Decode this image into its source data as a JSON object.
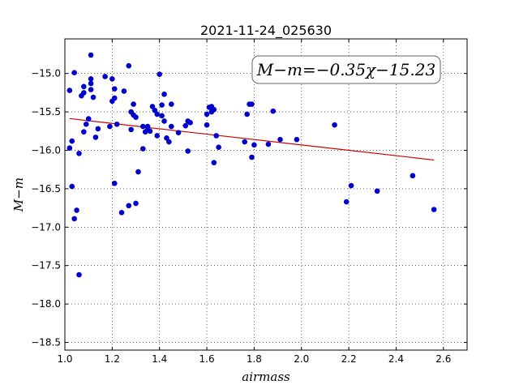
{
  "chart_data": {
    "type": "scatter",
    "title": "2021-11-24_025630",
    "xlabel": "airmass",
    "ylabel": "M−m",
    "xlim": [
      1.0,
      2.7
    ],
    "ylim": [
      -18.6,
      -14.55
    ],
    "y_inverted": true,
    "grid": true,
    "grid_style": "dotted",
    "xticks": [
      "1.0",
      "1.2",
      "1.4",
      "1.6",
      "1.8",
      "2.0",
      "2.2",
      "2.4",
      "2.6"
    ],
    "xtick_values": [
      1.0,
      1.2,
      1.4,
      1.6,
      1.8,
      2.0,
      2.2,
      2.4,
      2.6
    ],
    "yticks": [
      "−15.0",
      "−15.5",
      "−16.0",
      "−16.5",
      "−17.0",
      "−17.5",
      "−18.0",
      "−18.5"
    ],
    "ytick_values": [
      -15.0,
      -15.5,
      -16.0,
      -16.5,
      -17.0,
      -17.5,
      -18.0,
      -18.5
    ],
    "annotation": "M−m=−0.35χ−15.23",
    "fit_line": {
      "slope": -0.35,
      "intercept": -15.23,
      "x_range": [
        1.02,
        2.56
      ],
      "color": "#cc0000"
    },
    "point_color": "#0000cc",
    "points": [
      [
        1.02,
        -15.22
      ],
      [
        1.02,
        -15.97
      ],
      [
        1.03,
        -16.47
      ],
      [
        1.03,
        -15.88
      ],
      [
        1.04,
        -14.99
      ],
      [
        1.04,
        -16.89
      ],
      [
        1.05,
        -16.78
      ],
      [
        1.06,
        -17.62
      ],
      [
        1.06,
        -16.04
      ],
      [
        1.07,
        -15.29
      ],
      [
        1.08,
        -15.76
      ],
      [
        1.08,
        -15.17
      ],
      [
        1.08,
        -15.25
      ],
      [
        1.09,
        -15.66
      ],
      [
        1.1,
        -15.59
      ],
      [
        1.11,
        -15.21
      ],
      [
        1.11,
        -15.13
      ],
      [
        1.11,
        -15.07
      ],
      [
        1.11,
        -14.76
      ],
      [
        1.12,
        -15.31
      ],
      [
        1.13,
        -15.83
      ],
      [
        1.14,
        -15.72
      ],
      [
        1.17,
        -15.04
      ],
      [
        1.19,
        -15.69
      ],
      [
        1.2,
        -15.07
      ],
      [
        1.2,
        -15.36
      ],
      [
        1.21,
        -15.32
      ],
      [
        1.21,
        -15.2
      ],
      [
        1.21,
        -16.43
      ],
      [
        1.22,
        -15.66
      ],
      [
        1.24,
        -16.81
      ],
      [
        1.25,
        -15.23
      ],
      [
        1.27,
        -14.9
      ],
      [
        1.27,
        -16.72
      ],
      [
        1.28,
        -15.73
      ],
      [
        1.28,
        -15.5
      ],
      [
        1.29,
        -15.4
      ],
      [
        1.29,
        -15.54
      ],
      [
        1.3,
        -15.57
      ],
      [
        1.3,
        -16.69
      ],
      [
        1.31,
        -16.28
      ],
      [
        1.33,
        -15.98
      ],
      [
        1.33,
        -15.69
      ],
      [
        1.34,
        -15.76
      ],
      [
        1.35,
        -15.73
      ],
      [
        1.35,
        -15.69
      ],
      [
        1.36,
        -15.75
      ],
      [
        1.37,
        -15.43
      ],
      [
        1.38,
        -15.48
      ],
      [
        1.39,
        -15.81
      ],
      [
        1.39,
        -15.53
      ],
      [
        1.4,
        -15.01
      ],
      [
        1.41,
        -15.41
      ],
      [
        1.41,
        -15.55
      ],
      [
        1.42,
        -15.62
      ],
      [
        1.42,
        -15.27
      ],
      [
        1.43,
        -15.84
      ],
      [
        1.44,
        -15.89
      ],
      [
        1.45,
        -15.4
      ],
      [
        1.45,
        -15.69
      ],
      [
        1.48,
        -15.77
      ],
      [
        1.51,
        -15.68
      ],
      [
        1.52,
        -15.62
      ],
      [
        1.52,
        -16.01
      ],
      [
        1.53,
        -15.64
      ],
      [
        1.6,
        -15.53
      ],
      [
        1.6,
        -15.67
      ],
      [
        1.61,
        -15.44
      ],
      [
        1.62,
        -15.5
      ],
      [
        1.62,
        -15.43
      ],
      [
        1.63,
        -15.47
      ],
      [
        1.63,
        -16.16
      ],
      [
        1.64,
        -15.81
      ],
      [
        1.65,
        -15.96
      ],
      [
        1.76,
        -15.89
      ],
      [
        1.77,
        -15.53
      ],
      [
        1.78,
        -15.4
      ],
      [
        1.79,
        -15.4
      ],
      [
        1.79,
        -16.09
      ],
      [
        1.8,
        -15.93
      ],
      [
        1.86,
        -15.92
      ],
      [
        1.88,
        -15.49
      ],
      [
        1.91,
        -15.86
      ],
      [
        1.98,
        -15.86
      ],
      [
        2.14,
        -15.67
      ],
      [
        2.19,
        -16.67
      ],
      [
        2.21,
        -16.46
      ],
      [
        2.32,
        -16.53
      ],
      [
        2.47,
        -16.33
      ],
      [
        2.56,
        -16.77
      ]
    ]
  }
}
